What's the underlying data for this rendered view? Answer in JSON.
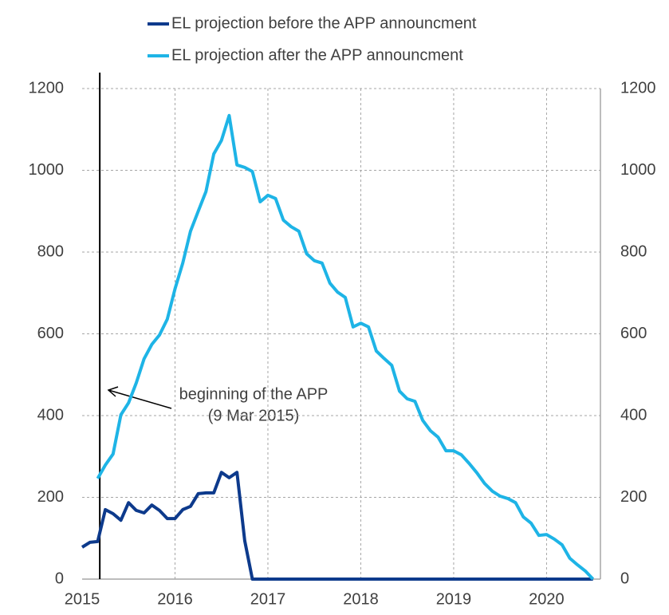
{
  "chart_data": {
    "type": "line",
    "x": [
      2015,
      2015.083,
      2015.167,
      2015.25,
      2015.333,
      2015.417,
      2015.5,
      2015.583,
      2015.667,
      2015.75,
      2015.833,
      2015.917,
      2016,
      2016.083,
      2016.167,
      2016.25,
      2016.333,
      2016.417,
      2016.5,
      2016.583,
      2016.667,
      2016.75,
      2016.833,
      2016.917,
      2017,
      2017.083,
      2017.167,
      2017.25,
      2017.333,
      2017.417,
      2017.5,
      2017.583,
      2017.667,
      2017.75,
      2017.833,
      2017.917,
      2018,
      2018.083,
      2018.167,
      2018.25,
      2018.333,
      2018.417,
      2018.5,
      2018.583,
      2018.667,
      2018.75,
      2018.833,
      2018.917,
      2019,
      2019.083,
      2019.167,
      2019.25,
      2019.333,
      2019.417,
      2019.5,
      2019.583,
      2019.667,
      2019.75,
      2019.833,
      2019.917,
      2020,
      2020.083,
      2020.167,
      2020.25,
      2020.333,
      2020.417,
      2020.5
    ],
    "series": [
      {
        "name": "EL projection before the APP announcment",
        "color": "#0d3a8c",
        "values": [
          78,
          90,
          92,
          170,
          160,
          144,
          187,
          168,
          162,
          181,
          168,
          148,
          148,
          170,
          178,
          209,
          211,
          211,
          261,
          248,
          261,
          94,
          0,
          0,
          0,
          0,
          0,
          0,
          0,
          0,
          0,
          0,
          0,
          0,
          0,
          0,
          0,
          0,
          0,
          0,
          0,
          0,
          0,
          0,
          0,
          0,
          0,
          0,
          0,
          0,
          0,
          0,
          0,
          0,
          0,
          0,
          0,
          0,
          0,
          0,
          0,
          0,
          0,
          0,
          0,
          0,
          0
        ]
      },
      {
        "name": "EL projection after the APP announcment",
        "color": "#1eb4e6",
        "values": [
          null,
          null,
          246,
          279,
          306,
          402,
          431,
          480,
          539,
          574,
          597,
          636,
          710,
          773,
          851,
          900,
          948,
          1040,
          1073,
          1134,
          1013,
          1007,
          997,
          923,
          939,
          931,
          878,
          862,
          851,
          796,
          779,
          773,
          724,
          702,
          689,
          617,
          626,
          617,
          558,
          540,
          523,
          460,
          441,
          435,
          388,
          363,
          347,
          314,
          314,
          304,
          283,
          260,
          234,
          215,
          203,
          197,
          187,
          152,
          137,
          107,
          109,
          98,
          84,
          51,
          35,
          20,
          0
        ]
      }
    ],
    "xlim": [
      2015,
      2020.58
    ],
    "xticks": [
      2015,
      2016,
      2017,
      2018,
      2019,
      2020
    ],
    "ylim": [
      0,
      1200
    ],
    "yticks": [
      0,
      200,
      400,
      600,
      800,
      1000,
      1200
    ],
    "y2lim": [
      0,
      1200
    ],
    "y2ticks": [
      0,
      200,
      400,
      600,
      800,
      1000,
      1200
    ],
    "grid": true,
    "vline": 2015.19,
    "annotation": [
      "beginning of the APP",
      "(9 Mar 2015)"
    ]
  }
}
